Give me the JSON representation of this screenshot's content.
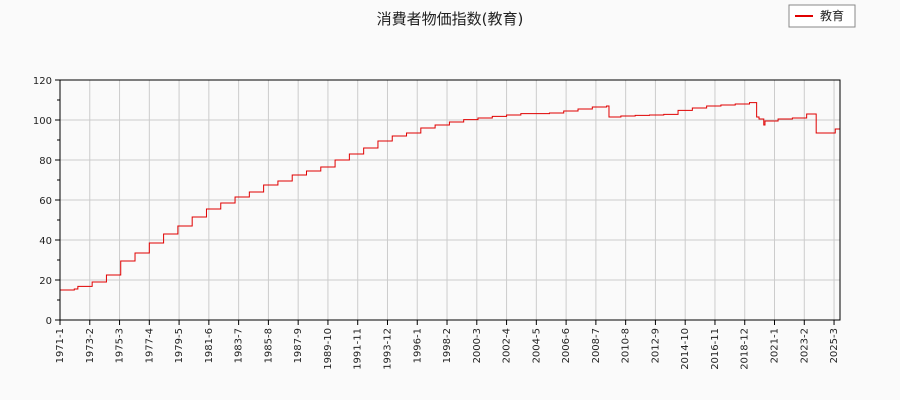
{
  "chart_data": {
    "type": "line",
    "title": "消費者物価指数(教育)",
    "xlabel": "",
    "ylabel": "",
    "ylim": [
      0,
      120
    ],
    "yticks": [
      0,
      20,
      40,
      60,
      80,
      100,
      120
    ],
    "grid": true,
    "legend_position": "top-right",
    "x_tick_labels": [
      "1971-1",
      "1973-2",
      "1975-3",
      "1977-4",
      "1979-5",
      "1981-6",
      "1983-7",
      "1985-8",
      "1987-9",
      "1989-10",
      "1991-11",
      "1993-12",
      "1996-1",
      "1998-2",
      "2000-3",
      "2002-4",
      "2004-5",
      "2006-6",
      "2008-7",
      "2010-8",
      "2012-9",
      "2014-10",
      "2016-11",
      "2018-12",
      "2021-1",
      "2023-2",
      "2025-3"
    ],
    "series": [
      {
        "name": "教育",
        "color": "#e00000",
        "x": [
          "1971-1",
          "1972-1",
          "1972-4",
          "1973-4",
          "1974-4",
          "1975-4",
          "1976-4",
          "1977-4",
          "1978-4",
          "1979-4",
          "1980-4",
          "1981-4",
          "1982-4",
          "1983-4",
          "1984-4",
          "1985-4",
          "1986-4",
          "1987-4",
          "1988-4",
          "1989-4",
          "1990-4",
          "1991-4",
          "1992-4",
          "1993-4",
          "1994-4",
          "1995-4",
          "1996-4",
          "1997-4",
          "1998-4",
          "1999-4",
          "2000-4",
          "2001-4",
          "2002-4",
          "2003-4",
          "2004-4",
          "2005-4",
          "2006-4",
          "2007-4",
          "2008-4",
          "2009-4",
          "2009-6",
          "2010-4",
          "2011-4",
          "2012-4",
          "2013-4",
          "2014-4",
          "2015-4",
          "2016-4",
          "2017-4",
          "2018-4",
          "2019-4",
          "2019-10",
          "2019-12",
          "2020-4",
          "2020-5",
          "2021-4",
          "2022-4",
          "2023-4",
          "2023-12",
          "2024-4",
          "2025-4",
          "2025-6"
        ],
        "values": [
          15.0,
          15.5,
          16.8,
          19.0,
          22.5,
          29.5,
          33.5,
          38.5,
          43.0,
          47.0,
          51.5,
          55.5,
          58.5,
          61.5,
          64.0,
          67.5,
          69.5,
          72.5,
          74.5,
          76.5,
          80.0,
          83.0,
          86.0,
          89.5,
          92.0,
          93.5,
          96.0,
          97.5,
          99.0,
          100.2,
          101.0,
          101.8,
          102.5,
          103.2,
          103.2,
          103.5,
          104.5,
          105.5,
          106.5,
          107.0,
          101.5,
          102.0,
          102.3,
          102.5,
          102.8,
          104.8,
          106.0,
          107.0,
          107.5,
          108.0,
          108.7,
          101.5,
          100.5,
          97.5,
          99.5,
          100.5,
          101.0,
          103.0,
          93.5,
          93.5,
          95.5,
          95.5
        ]
      }
    ]
  }
}
